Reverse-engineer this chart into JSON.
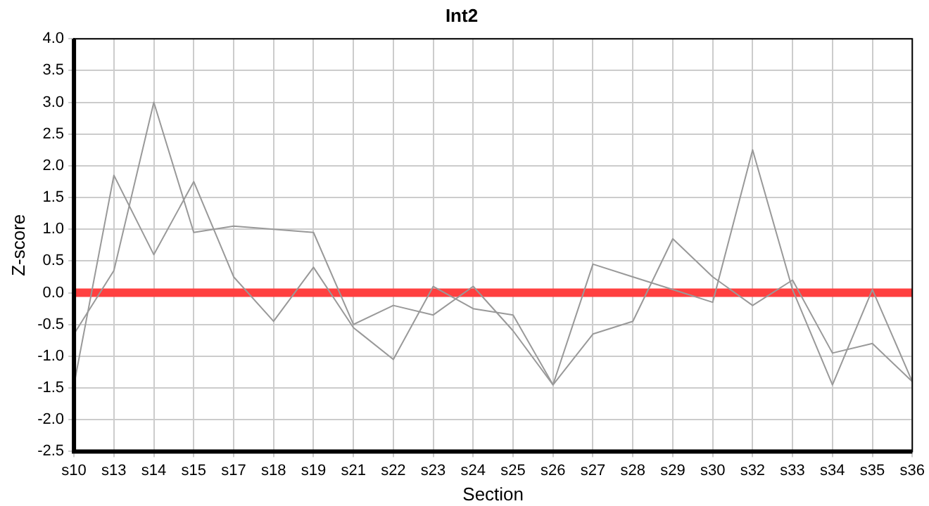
{
  "chart_data": {
    "type": "line",
    "title": "Int2",
    "xlabel": "Section",
    "ylabel": "Z-score",
    "categories": [
      "s10",
      "s13",
      "s14",
      "s15",
      "s17",
      "s18",
      "s19",
      "s21",
      "s22",
      "s23",
      "s24",
      "s25",
      "s26",
      "s27",
      "s28",
      "s29",
      "s30",
      "s32",
      "s33",
      "s34",
      "s35",
      "s36"
    ],
    "series": [
      {
        "color": "#999999",
        "values": [
          -1.45,
          1.85,
          0.6,
          1.75,
          0.25,
          -0.45,
          0.4,
          -0.55,
          -1.05,
          0.1,
          -0.25,
          -0.35,
          -1.45,
          0.45,
          0.25,
          0.05,
          -0.15,
          2.25,
          0.05,
          -1.45,
          0.05,
          -1.4
        ]
      },
      {
        "color": "#999999",
        "values": [
          -0.65,
          0.35,
          3.0,
          0.95,
          1.05,
          1.0,
          0.95,
          -0.5,
          -0.2,
          -0.35,
          0.1,
          -0.6,
          -1.45,
          -0.65,
          -0.45,
          0.85,
          0.25,
          -0.2,
          0.2,
          -0.95,
          -0.8,
          -1.4
        ]
      }
    ],
    "ylim": [
      -2.5,
      4
    ],
    "yticks": [
      {
        "value": -2.5,
        "label": "-2.5"
      },
      {
        "value": -2,
        "label": "-2.0"
      },
      {
        "value": -1.5,
        "label": "-1.5"
      },
      {
        "value": -1,
        "label": "-1.0"
      },
      {
        "value": -0.5,
        "label": "-0.5"
      },
      {
        "value": 0,
        "label": "0.0"
      },
      {
        "value": 0.5,
        "label": "0.5"
      },
      {
        "value": 1,
        "label": "1.0"
      },
      {
        "value": 1.5,
        "label": "1.5"
      },
      {
        "value": 2,
        "label": "2.0"
      },
      {
        "value": 2.5,
        "label": "2.5"
      },
      {
        "value": 3,
        "label": "3.0"
      },
      {
        "value": 3.5,
        "label": "3.5"
      },
      {
        "value": 4,
        "label": "4.0"
      }
    ],
    "ref_lines": [
      {
        "axis": "y",
        "value": 0,
        "color": "#ff4040"
      }
    ],
    "grid": true,
    "legend": false,
    "marker": "none",
    "line_style": "solid"
  }
}
